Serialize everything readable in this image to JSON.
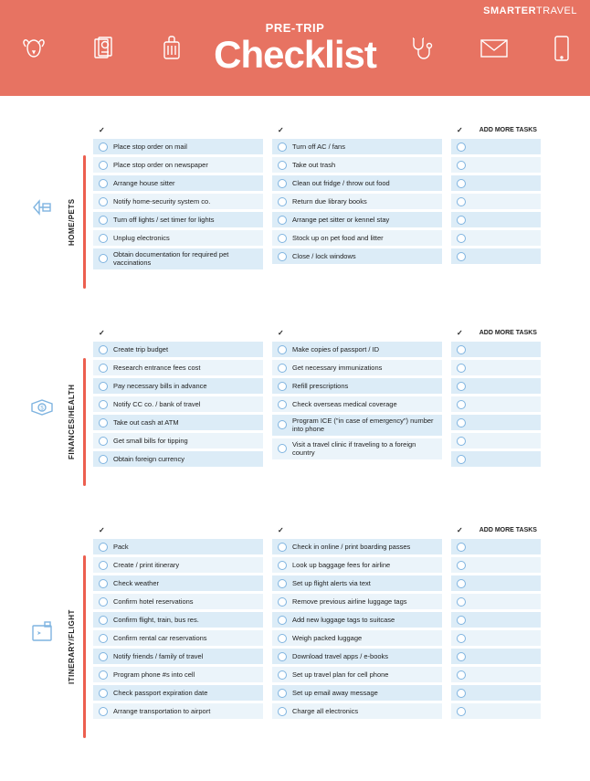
{
  "brand_smarter": "SMARTER",
  "brand_travel": "TRAVEL",
  "header_pre": "PRE-TRIP",
  "header_main": "Checklist",
  "col_head_check": "✓",
  "col_head_add": "ADD MORE TASKS",
  "colors": {
    "header_bg": "#e77362",
    "row_alt_a": "#dcecf7",
    "row_alt_b": "#ebf4fa",
    "circle_border": "#7fb4e0",
    "accent_bar": "#ec5f4f"
  },
  "sections": [
    {
      "id": "home",
      "label": "HOME/PETS",
      "icon": "home",
      "col1": [
        "Place stop order on mail",
        "Place stop order on newspaper",
        "Arrange house sitter",
        "Notify home-security system co.",
        "Turn off lights / set timer for lights",
        "Unplug electronics",
        "Obtain documentation for required pet vaccinations"
      ],
      "col2": [
        "Turn off AC / fans",
        "Take out trash",
        "Clean out fridge / throw out food",
        "Return due library books",
        "Arrange pet sitter or kennel stay",
        "Stock up on pet food and litter",
        "Close / lock windows"
      ],
      "blank_rows": 7
    },
    {
      "id": "finances",
      "label": "FINANCES/HEALTH",
      "icon": "finances",
      "col1": [
        "Create trip budget",
        "Research entrance fees cost",
        "Pay necessary bills in advance",
        "Notify CC co. / bank of travel",
        "Take out cash at ATM",
        "Get small bills for tipping",
        "Obtain foreign currency"
      ],
      "col2": [
        "Make copies of passport / ID",
        "Get necessary immunizations",
        "Refill prescriptions",
        "Check overseas medical coverage",
        "Program ICE (\"in case of emergency\") number into phone",
        "Visit a travel clinic if traveling to a foreign country"
      ],
      "blank_rows": 7
    },
    {
      "id": "itinerary",
      "label": "ITINERARY/FLIGHT",
      "icon": "itinerary",
      "col1": [
        "Pack",
        "Create / print itinerary",
        "Check weather",
        "Confirm hotel reservations",
        "Confirm flight, train, bus res.",
        "Confirm rental car reservations",
        "Notify friends / family of travel",
        "Program phone #s into cell",
        "Check passport expiration date",
        "Arrange transportation to airport"
      ],
      "col2": [
        "Check in online / print boarding passes",
        "Look up baggage fees for airline",
        "Set up flight alerts via text",
        "Remove previous airline luggage tags",
        "Add new luggage tags to suitcase",
        "Weigh packed luggage",
        "Download travel apps / e-books",
        "Set up travel plan for cell phone",
        "Set up email away message",
        "Charge all electronics"
      ],
      "blank_rows": 10
    }
  ]
}
